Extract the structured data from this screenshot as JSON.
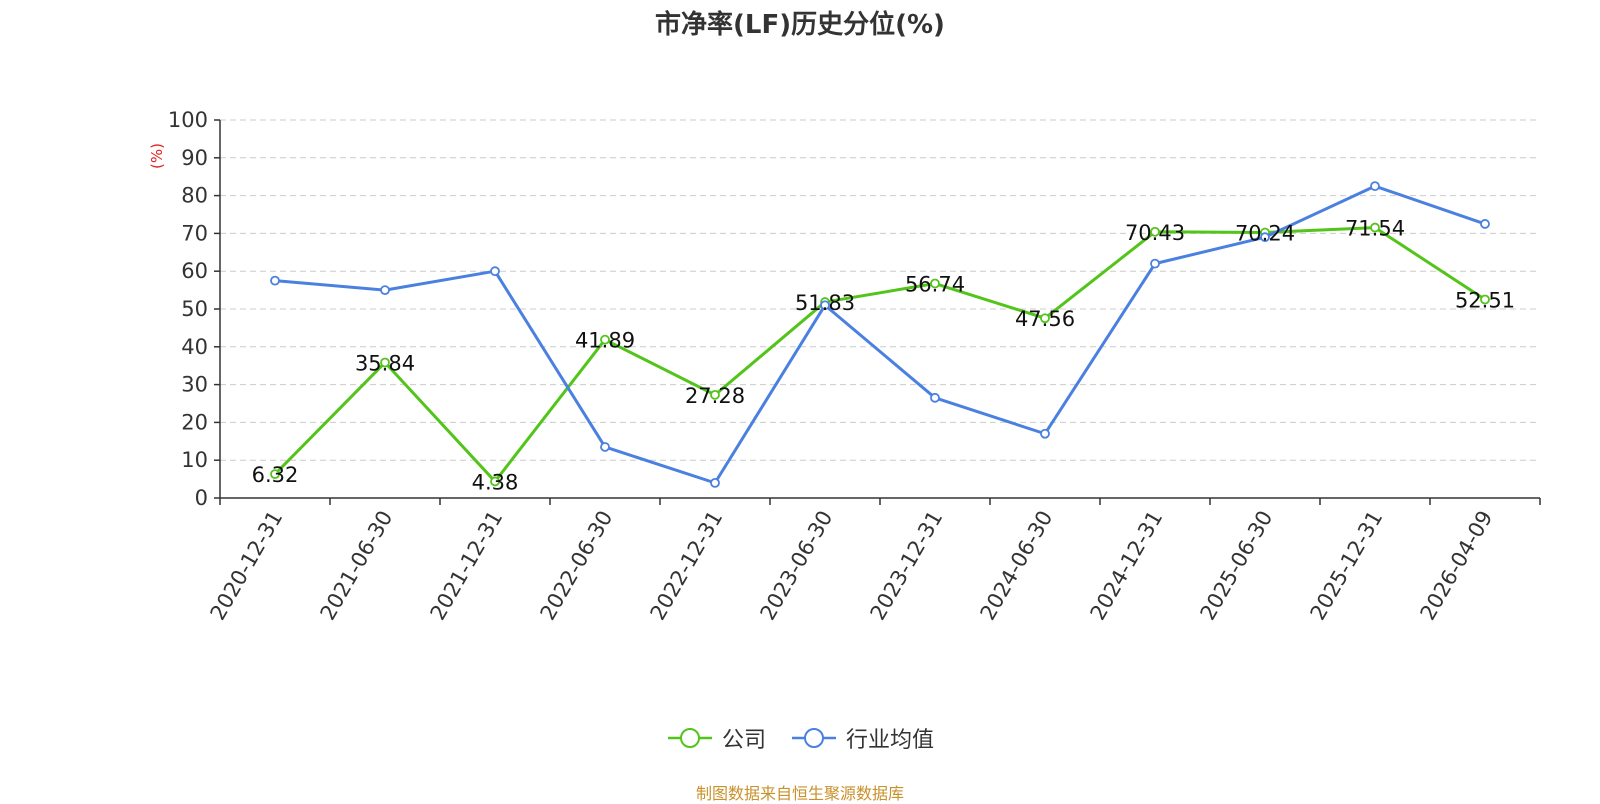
{
  "chart_data": {
    "type": "line",
    "title": "市净率(LF)历史分位(%)",
    "ylabel": "(%)",
    "xlabel": "",
    "ylim": [
      0,
      100
    ],
    "yticks": [
      0,
      10,
      20,
      30,
      40,
      50,
      60,
      70,
      80,
      90,
      100
    ],
    "grid": true,
    "legend_position": "bottom-center",
    "categories": [
      "2020-12-31",
      "2021-06-30",
      "2021-12-31",
      "2022-06-30",
      "2022-12-31",
      "2023-06-30",
      "2023-12-31",
      "2024-06-30",
      "2024-12-31",
      "2025-06-30",
      "2025-12-31",
      "2026-04-09"
    ],
    "series": [
      {
        "name": "公司",
        "color": "#52c41a",
        "show_labels": true,
        "values": [
          6.32,
          35.84,
          4.38,
          41.89,
          27.28,
          51.83,
          56.74,
          47.56,
          70.43,
          70.24,
          71.54,
          52.51
        ]
      },
      {
        "name": "行业均值",
        "color": "#4a80e0",
        "show_labels": false,
        "values": [
          57.5,
          55,
          60,
          13.5,
          4,
          51,
          26.5,
          17,
          62,
          69,
          82.5,
          72.5
        ]
      }
    ],
    "source": "制图数据来自恒生聚源数据库"
  },
  "colors": {
    "title": "#333333",
    "axis": "#333333",
    "grid": "#cccccc",
    "ylabel": "#e02020",
    "source": "#c9912b"
  }
}
